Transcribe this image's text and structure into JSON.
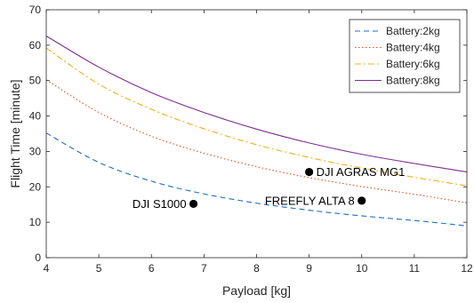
{
  "chart_data": {
    "type": "line",
    "title": "",
    "xlabel": "Payload [kg]",
    "ylabel": "Flight Time [minute]",
    "xlim": [
      4,
      12
    ],
    "ylim": [
      0,
      70
    ],
    "xticks": [
      "4",
      "5",
      "6",
      "7",
      "8",
      "9",
      "10",
      "11",
      "12"
    ],
    "yticks": [
      "0",
      "10",
      "20",
      "30",
      "40",
      "50",
      "60",
      "70"
    ],
    "grid": false,
    "legend_position": "top-right",
    "series": [
      {
        "name": "Battery:2kg",
        "color": "#1f6fbf",
        "dash": "dashed",
        "x": [
          4,
          5,
          6,
          7,
          8,
          9,
          10,
          11,
          12
        ],
        "values": [
          35.2,
          26.9,
          21.6,
          18.0,
          15.4,
          13.4,
          11.8,
          10.5,
          9.0
        ]
      },
      {
        "name": "Battery:4kg",
        "color": "#d9531e",
        "dash": "dotted",
        "x": [
          4,
          5,
          6,
          7,
          8,
          9,
          10,
          11,
          12
        ],
        "values": [
          50.2,
          41.0,
          34.3,
          29.5,
          25.7,
          22.6,
          20.1,
          17.9,
          15.5
        ]
      },
      {
        "name": "Battery:6kg",
        "color": "#edb120",
        "dash": "dashdot",
        "x": [
          4,
          5,
          6,
          7,
          8,
          9,
          10,
          11,
          12
        ],
        "values": [
          59.2,
          49.0,
          41.9,
          36.4,
          31.9,
          28.3,
          25.3,
          22.7,
          20.3
        ]
      },
      {
        "name": "Battery:8kg",
        "color": "#7e2f8e",
        "dash": "solid",
        "x": [
          4,
          5,
          6,
          7,
          8,
          9,
          10,
          11,
          12
        ],
        "values": [
          62.6,
          53.8,
          46.6,
          41.0,
          36.3,
          32.4,
          29.2,
          26.6,
          24.2
        ]
      }
    ],
    "points": [
      {
        "label": "DJI S1000",
        "x": 6.8,
        "y": 15.2,
        "label_side": "left"
      },
      {
        "label": "DJI AGRAS MG1",
        "x": 9.0,
        "y": 24.2,
        "label_side": "right"
      },
      {
        "label": "FREEFLY ALTA 8",
        "x": 10.0,
        "y": 16.1,
        "label_side": "left"
      }
    ]
  }
}
